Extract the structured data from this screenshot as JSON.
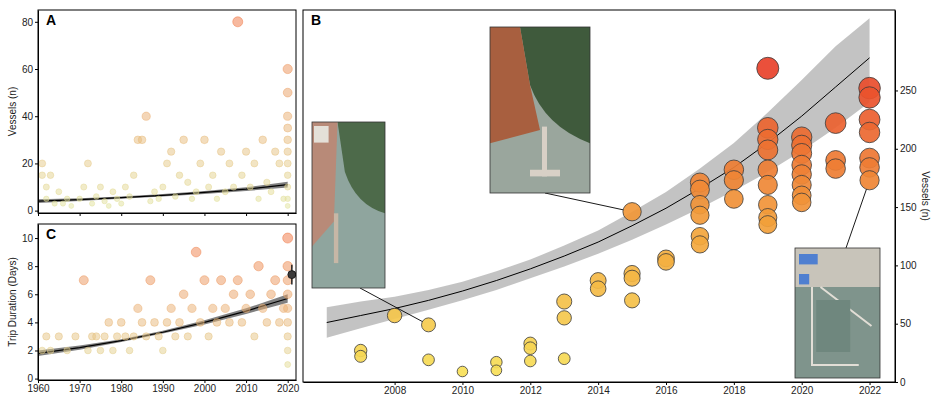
{
  "chart_data": [
    {
      "type": "scatter",
      "title": "A",
      "y_label": "Vessels (n)",
      "xlim": [
        1960,
        2022
      ],
      "ylim": [
        -1,
        85
      ],
      "xticks": [
        1960,
        1970,
        1980,
        1990,
        2000,
        2010,
        2020
      ],
      "yticks": [
        0,
        20,
        40,
        60,
        80
      ],
      "tick_labels": "y",
      "series": [
        {
          "type": "scatter",
          "x": [
            1961,
            1961,
            1962,
            1962,
            1963,
            1964,
            1965,
            1966,
            1967,
            1968,
            1970,
            1971,
            1972,
            1973,
            1974,
            1975,
            1976,
            1977,
            1978,
            1979,
            1980,
            1981,
            1982,
            1983,
            1984,
            1985,
            1986,
            1987,
            1988,
            1989,
            1990,
            1991,
            1992,
            1993,
            1994,
            1995,
            1996,
            1997,
            1998,
            1999,
            2000,
            2001,
            2002,
            2003,
            2004,
            2005,
            2006,
            2007,
            2008,
            2009,
            2010,
            2011,
            2012,
            2013,
            2014,
            2015,
            2016,
            2017,
            2018,
            2019,
            2020,
            2020,
            2020,
            2020,
            2020,
            2020,
            2020,
            2020,
            2020,
            2020,
            2020
          ],
          "values": [
            15,
            20,
            10,
            5,
            15,
            3,
            8,
            3,
            5,
            2,
            5,
            10,
            20,
            3,
            6,
            10,
            4,
            2,
            8,
            5,
            3,
            10,
            6,
            15,
            30,
            30,
            40,
            4,
            8,
            5,
            10,
            20,
            25,
            6,
            15,
            30,
            12,
            5,
            8,
            20,
            30,
            10,
            15,
            5,
            25,
            8,
            20,
            10,
            80,
            15,
            25,
            10,
            20,
            5,
            30,
            12,
            8,
            25,
            20,
            5,
            60,
            50,
            40,
            35,
            30,
            25,
            20,
            15,
            10,
            5,
            2
          ]
        },
        {
          "type": "line",
          "x": [
            1960,
            1970,
            1980,
            1990,
            2000,
            2010,
            2020
          ],
          "values": [
            4,
            4.7,
            5.5,
            6.5,
            7.7,
            9.1,
            11
          ],
          "lower": [
            3.2,
            4.1,
            5.0,
            6.0,
            7.1,
            8.3,
            9.8
          ],
          "upper": [
            4.8,
            5.3,
            6.0,
            7.0,
            8.3,
            9.9,
            12.2
          ]
        }
      ]
    },
    {
      "type": "scatter",
      "title": "B",
      "y_label": "Vessels (n)",
      "xlim": [
        2005.3,
        2022.75
      ],
      "ylim": [
        0,
        319
      ],
      "xticks": [
        2008,
        2010,
        2012,
        2014,
        2016,
        2018,
        2020,
        2022
      ],
      "yticks": [
        0,
        50,
        100,
        150,
        200,
        250
      ],
      "series": [
        {
          "type": "scatter",
          "x": [
            2007,
            2007,
            2008,
            2009,
            2009,
            2010,
            2011,
            2011,
            2012,
            2012,
            2012,
            2013,
            2013,
            2013,
            2014,
            2014,
            2015,
            2015,
            2015,
            2015,
            2016,
            2016,
            2017,
            2017,
            2017,
            2017,
            2017,
            2017,
            2018,
            2018,
            2018,
            2019,
            2019,
            2019,
            2019,
            2019,
            2019,
            2019,
            2019,
            2019,
            2020,
            2020,
            2020,
            2020,
            2020,
            2020,
            2020,
            2020,
            2021,
            2021,
            2021,
            2022,
            2022,
            2022,
            2022,
            2022,
            2022,
            2022
          ],
          "values": [
            27,
            22,
            57,
            49,
            19,
            9,
            17,
            10,
            33,
            29,
            18,
            69,
            55,
            20,
            87,
            80,
            146,
            93,
            89,
            70,
            106,
            103,
            171,
            165,
            152,
            143,
            125,
            118,
            182,
            173,
            157,
            269,
            218,
            208,
            199,
            182,
            169,
            152,
            141,
            135,
            210,
            203,
            196,
            186,
            178,
            169,
            160,
            154,
            222,
            190,
            183,
            252,
            244,
            225,
            214,
            192,
            184,
            173
          ]
        },
        {
          "type": "line",
          "x": [
            2006,
            2007,
            2008,
            2009,
            2010,
            2011,
            2012,
            2013,
            2014,
            2015,
            2016,
            2017,
            2018,
            2019,
            2020,
            2021,
            2022
          ],
          "values": [
            51,
            57,
            63,
            70,
            78,
            87,
            97,
            108,
            120,
            134,
            149,
            166,
            184,
            205,
            228,
            253,
            278
          ],
          "lower": [
            38,
            46,
            54,
            62,
            70,
            79,
            89,
            99,
            110,
            122,
            135,
            149,
            164,
            180,
            198,
            218,
            240
          ],
          "upper": [
            64,
            69,
            73,
            79,
            86,
            95,
            105,
            117,
            130,
            146,
            163,
            183,
            205,
            231,
            259,
            288,
            312
          ]
        }
      ]
    },
    {
      "type": "scatter",
      "title": "C",
      "y_label": "Trip Duration (Days)",
      "xlim": [
        1960,
        2022
      ],
      "ylim": [
        -0.1,
        11
      ],
      "xticks": [
        1960,
        1970,
        1980,
        1990,
        2000,
        2010,
        2020
      ],
      "yticks": [
        0,
        2,
        4,
        6,
        8,
        10
      ],
      "series": [
        {
          "type": "scatter",
          "x": [
            1961,
            1962,
            1963,
            1965,
            1967,
            1969,
            1971,
            1972,
            1973,
            1974,
            1975,
            1976,
            1977,
            1978,
            1979,
            1980,
            1981,
            1982,
            1983,
            1984,
            1985,
            1986,
            1987,
            1988,
            1989,
            1990,
            1991,
            1992,
            1993,
            1994,
            1995,
            1996,
            1997,
            1998,
            1999,
            2000,
            2001,
            2002,
            2003,
            2004,
            2005,
            2006,
            2007,
            2008,
            2009,
            2010,
            2011,
            2012,
            2013,
            2014,
            2015,
            2016,
            2017,
            2018,
            2019,
            2020,
            2020,
            2020,
            2020,
            2020,
            2020,
            2020,
            2020,
            2020
          ],
          "values": [
            2,
            3,
            2,
            3,
            2,
            3,
            7,
            2,
            3,
            3,
            2,
            3,
            4,
            2,
            3,
            4,
            3,
            2,
            3,
            5,
            4,
            3,
            7,
            4,
            3,
            2,
            4,
            5,
            3,
            4,
            6,
            3,
            5,
            9,
            4,
            7,
            3,
            5,
            4,
            7,
            5,
            4,
            6,
            7,
            4,
            5,
            6,
            3,
            8,
            5,
            4,
            6,
            7,
            4,
            5,
            10,
            8,
            7,
            6,
            5,
            4,
            3,
            2,
            1
          ]
        },
        {
          "type": "line",
          "x": [
            1960,
            1970,
            1980,
            1990,
            2000,
            2010,
            2020
          ],
          "values": [
            1.8,
            2.2,
            2.7,
            3.3,
            4.0,
            4.8,
            5.7
          ],
          "lower": [
            1.6,
            2.05,
            2.6,
            3.2,
            3.85,
            4.6,
            5.4
          ],
          "upper": [
            2.0,
            2.35,
            2.8,
            3.4,
            4.15,
            5.0,
            6.0
          ]
        },
        {
          "type": "errorbar",
          "x": [
            2021
          ],
          "values": [
            7.4
          ],
          "error": [
            0.7
          ]
        }
      ]
    }
  ]
}
